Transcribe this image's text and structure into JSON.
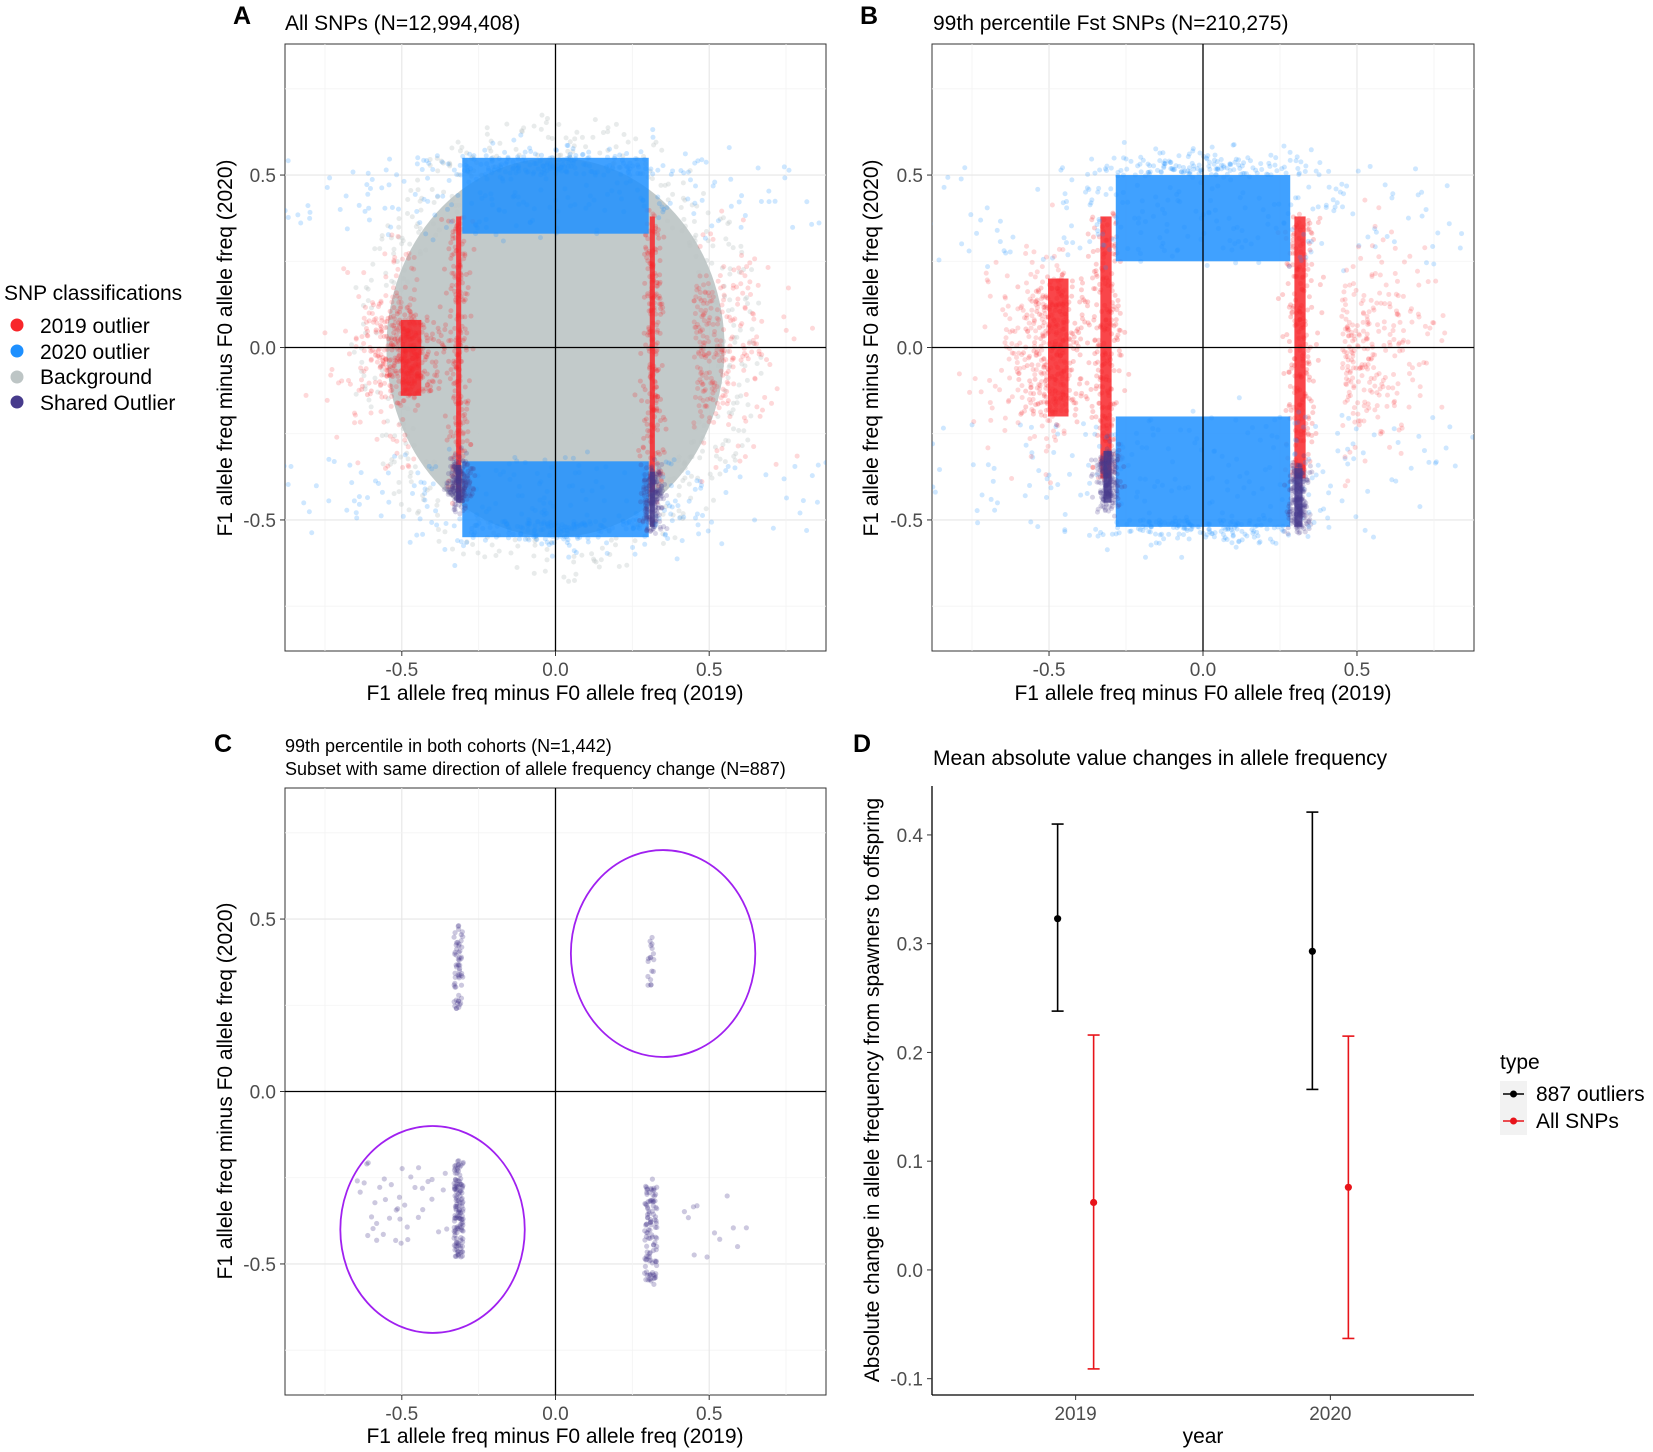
{
  "colors": {
    "outlier_2019": "#f8262a",
    "outlier_2020": "#1e90ff",
    "background": "#bdc5c5",
    "shared": "#473b8c",
    "ellipse": "#a020f0",
    "errbar_outliers": "#000000",
    "errbar_all": "#e8141a",
    "grid_major": "#e6e6e6",
    "grid_minor": "#f3f3f3"
  },
  "legend_snp": {
    "title": "SNP classifications",
    "items": [
      {
        "label": "2019 outlier",
        "color": "#f8262a"
      },
      {
        "label": "2020 outlier",
        "color": "#1e90ff"
      },
      {
        "label": "Background",
        "color": "#bdc5c5"
      },
      {
        "label": "Shared Outlier",
        "color": "#473b8c"
      }
    ]
  },
  "legend_type": {
    "title": "type",
    "items": [
      {
        "label": "887 outliers",
        "color": "#000000"
      },
      {
        "label": "All SNPs",
        "color": "#e8141a"
      }
    ]
  },
  "chart_data": [
    {
      "panel": "A",
      "type": "scatter",
      "title": "All SNPs (N=12,994,408)",
      "xlabel": "F1 allele freq minus F0 allele freq (2019)",
      "ylabel": "F1 allele freq minus F0 allele freq (2020)",
      "xlim": [
        -0.88,
        0.88
      ],
      "ylim": [
        -0.88,
        0.88
      ],
      "xticks": [
        -0.5,
        0.0,
        0.5
      ],
      "yticks": [
        -0.5,
        0.0,
        0.5
      ],
      "xtick_labels": [
        "-0.5",
        "0.0",
        "0.5"
      ],
      "ytick_labels": [
        "-0.5",
        "0.0",
        "0.5"
      ],
      "clusters": [
        {
          "class": "Background",
          "shape": "disc",
          "cx": 0.0,
          "cy": 0.0,
          "rx": 0.55,
          "ry": 0.55,
          "density": "solid"
        },
        {
          "class": "2019 outlier",
          "shape": "band",
          "x": [
            -0.32,
            -0.31
          ],
          "y": [
            -0.42,
            0.38
          ]
        },
        {
          "class": "2019 outlier",
          "shape": "band",
          "x": [
            0.31,
            0.32
          ],
          "y": [
            -0.42,
            0.38
          ]
        },
        {
          "class": "2019 outlier",
          "shape": "band",
          "x": [
            -0.5,
            -0.44
          ],
          "y": [
            -0.14,
            0.08
          ]
        },
        {
          "class": "2020 outlier",
          "shape": "band",
          "x": [
            -0.3,
            0.3
          ],
          "y": [
            0.33,
            0.55
          ]
        },
        {
          "class": "2020 outlier",
          "shape": "band",
          "x": [
            -0.3,
            0.3
          ],
          "y": [
            -0.55,
            -0.33
          ]
        },
        {
          "class": "Shared Outlier",
          "shape": "band",
          "x": [
            -0.32,
            -0.31
          ],
          "y": [
            -0.45,
            -0.34
          ]
        },
        {
          "class": "Shared Outlier",
          "shape": "band",
          "x": [
            0.31,
            0.32
          ],
          "y": [
            -0.52,
            -0.36
          ]
        }
      ]
    },
    {
      "panel": "B",
      "type": "scatter",
      "title": "99th percentile Fst SNPs (N=210,275)",
      "xlabel": "F1 allele freq minus F0 allele freq (2019)",
      "ylabel": "F1 allele freq minus F0 allele freq (2020)",
      "xlim": [
        -0.88,
        0.88
      ],
      "ylim": [
        -0.88,
        0.88
      ],
      "xticks": [
        -0.5,
        0.0,
        0.5
      ],
      "yticks": [
        -0.5,
        0.0,
        0.5
      ],
      "xtick_labels": [
        "-0.5",
        "0.0",
        "0.5"
      ],
      "ytick_labels": [
        "-0.5",
        "0.0",
        "0.5"
      ],
      "clusters": [
        {
          "class": "2019 outlier",
          "shape": "band",
          "x": [
            -0.33,
            -0.3
          ],
          "y": [
            -0.38,
            0.38
          ]
        },
        {
          "class": "2019 outlier",
          "shape": "band",
          "x": [
            0.3,
            0.33
          ],
          "y": [
            -0.38,
            0.38
          ]
        },
        {
          "class": "2019 outlier",
          "shape": "band",
          "x": [
            -0.5,
            -0.44
          ],
          "y": [
            -0.2,
            0.2
          ]
        },
        {
          "class": "2020 outlier",
          "shape": "band",
          "x": [
            -0.28,
            0.28
          ],
          "y": [
            0.25,
            0.5
          ]
        },
        {
          "class": "2020 outlier",
          "shape": "band",
          "x": [
            -0.28,
            0.28
          ],
          "y": [
            -0.52,
            -0.2
          ]
        },
        {
          "class": "Shared Outlier",
          "shape": "band",
          "x": [
            -0.32,
            -0.3
          ],
          "y": [
            -0.45,
            -0.3
          ]
        },
        {
          "class": "Shared Outlier",
          "shape": "band",
          "x": [
            0.3,
            0.32
          ],
          "y": [
            -0.52,
            -0.35
          ]
        }
      ]
    },
    {
      "panel": "C",
      "type": "scatter",
      "title": "99th percentile in both cohorts (N=1,442)",
      "subtitle": "Subset with same direction of allele frequency change (N=887)",
      "xlabel": "F1 allele freq minus F0 allele freq (2019)",
      "ylabel": "F1 allele freq minus F0 allele freq (2020)",
      "xlim": [
        -0.88,
        0.88
      ],
      "ylim": [
        -0.88,
        0.88
      ],
      "xticks": [
        -0.5,
        0.0,
        0.5
      ],
      "yticks": [
        -0.5,
        0.0,
        0.5
      ],
      "xtick_labels": [
        "-0.5",
        "0.0",
        "0.5"
      ],
      "ytick_labels": [
        "-0.5",
        "0.0",
        "0.5"
      ],
      "clusters": [
        {
          "class": "Shared Outlier",
          "x": [
            -0.33,
            -0.3
          ],
          "y": [
            0.24,
            0.5
          ],
          "n": 60
        },
        {
          "class": "Shared Outlier",
          "x": [
            0.3,
            0.32
          ],
          "y": [
            0.3,
            0.45
          ],
          "n": 18
        },
        {
          "class": "Shared Outlier",
          "x": [
            -0.33,
            -0.3
          ],
          "y": [
            -0.48,
            -0.2
          ],
          "n": 140
        },
        {
          "class": "Shared Outlier",
          "x": [
            -0.65,
            -0.35
          ],
          "y": [
            -0.45,
            -0.2
          ],
          "n": 40
        },
        {
          "class": "Shared Outlier",
          "x": [
            0.29,
            0.33
          ],
          "y": [
            -0.56,
            -0.25
          ],
          "n": 110
        },
        {
          "class": "Shared Outlier",
          "x": [
            0.4,
            0.65
          ],
          "y": [
            -0.52,
            -0.3
          ],
          "n": 12
        }
      ],
      "ellipses": [
        {
          "cx": 0.35,
          "cy": 0.4,
          "rx": 0.3,
          "ry": 0.3
        },
        {
          "cx": -0.4,
          "cy": -0.4,
          "rx": 0.3,
          "ry": 0.3
        }
      ]
    },
    {
      "panel": "D",
      "type": "errorbar",
      "title": "Mean absolute value changes in allele frequency",
      "xlabel": "year",
      "ylabel": "Absolute change in allele frequency from spawners to offspring",
      "categories": [
        "2019",
        "2020"
      ],
      "ylim": [
        -0.115,
        0.445
      ],
      "yticks": [
        -0.1,
        0.0,
        0.1,
        0.2,
        0.3,
        0.4
      ],
      "ytick_labels": [
        "-0.1",
        "0.0",
        "0.1",
        "0.2",
        "0.3",
        "0.4"
      ],
      "series": [
        {
          "name": "887 outliers",
          "color": "#000000",
          "mean": [
            0.323,
            0.293
          ],
          "lower": [
            0.238,
            0.166
          ],
          "upper": [
            0.41,
            0.421
          ]
        },
        {
          "name": "All SNPs",
          "color": "#e8141a",
          "mean": [
            0.062,
            0.076
          ],
          "lower": [
            -0.091,
            -0.063
          ],
          "upper": [
            0.216,
            0.215
          ]
        }
      ]
    }
  ],
  "panel_labels": [
    "A",
    "B",
    "C",
    "D"
  ]
}
